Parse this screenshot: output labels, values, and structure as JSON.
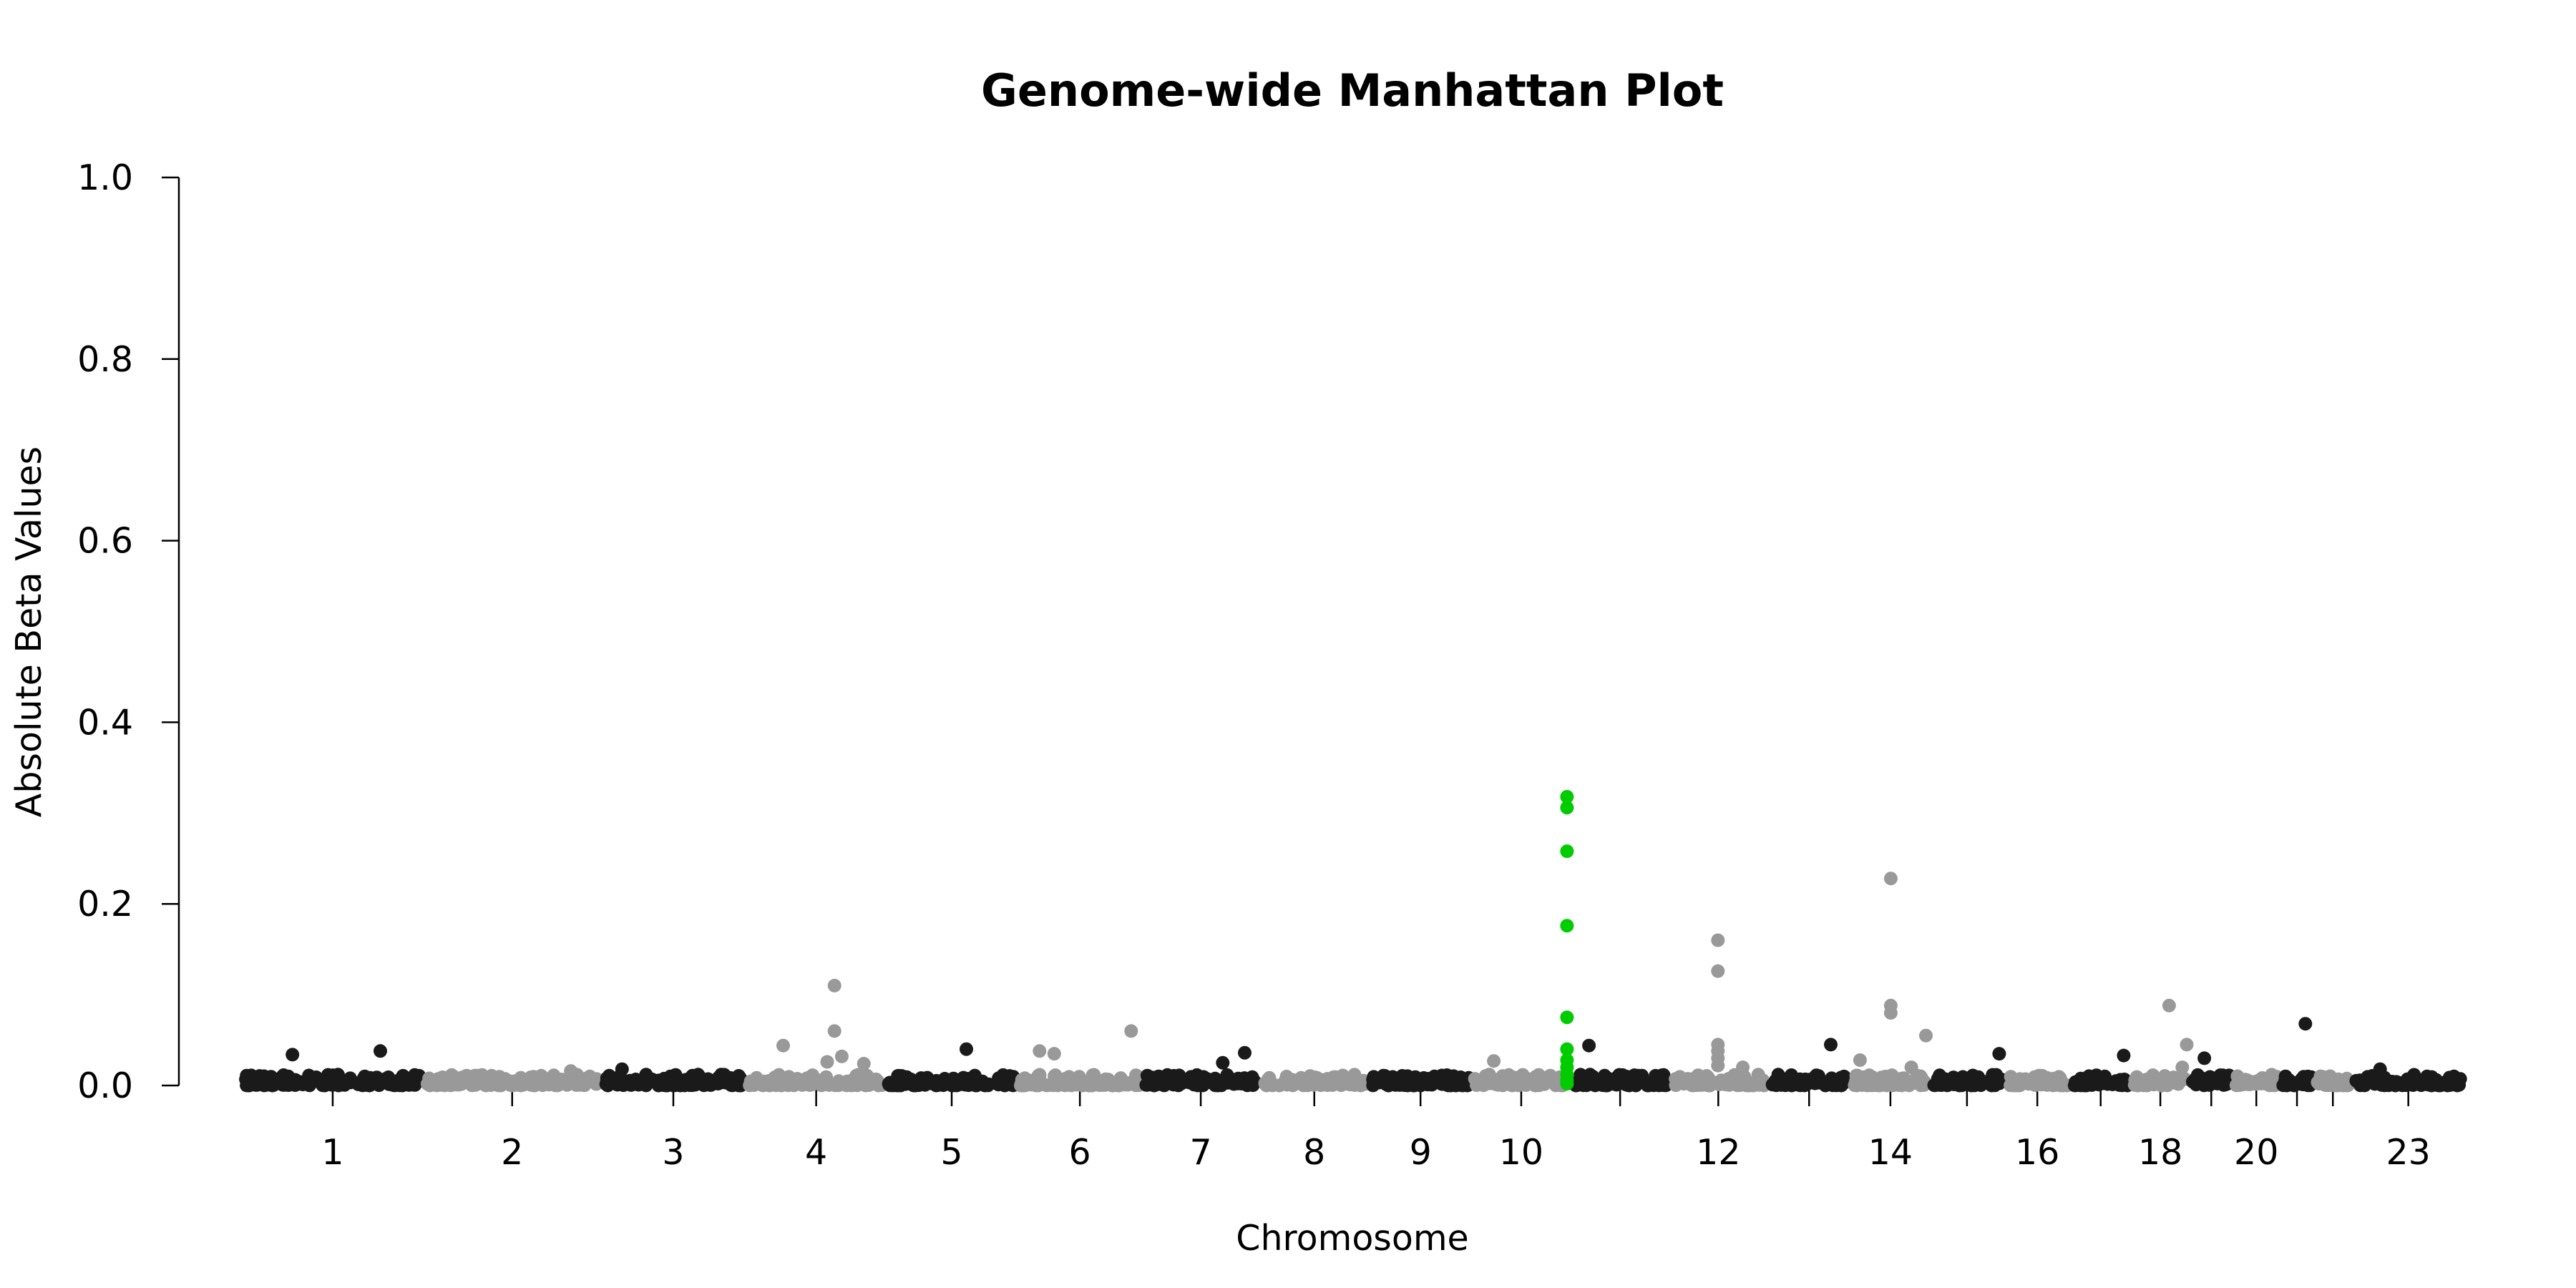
{
  "chart_data": {
    "type": "scatter",
    "title": "Genome-wide Manhattan Plot",
    "xlabel": "Chromosome",
    "ylabel": "Absolute Beta Values",
    "ylim": [
      0,
      1
    ],
    "y_ticks": [
      "0.0",
      "0.2",
      "0.4",
      "0.6",
      "0.8",
      "1.0"
    ],
    "y_tick_values": [
      0,
      0.2,
      0.4,
      0.6,
      0.8,
      1.0
    ],
    "x_tick_labels": [
      "1",
      "2",
      "3",
      "4",
      "5",
      "6",
      "7",
      "8",
      "9",
      "10",
      "12",
      "14",
      "16",
      "18",
      "20",
      "23"
    ],
    "grid": false,
    "legend": "none",
    "colors": {
      "odd": "#1a1a1a",
      "even": "#999999",
      "highlight": "#00cc00"
    },
    "x_scale": "genomic position (not printed on axis)",
    "chromosomes": [
      {
        "chrom": "1",
        "start": 0,
        "end": 250,
        "tick": true
      },
      {
        "chrom": "2",
        "start": 250,
        "end": 490,
        "tick": true
      },
      {
        "chrom": "3",
        "start": 490,
        "end": 690,
        "tick": true
      },
      {
        "chrom": "4",
        "start": 690,
        "end": 880,
        "tick": true
      },
      {
        "chrom": "5",
        "start": 880,
        "end": 1060,
        "tick": true
      },
      {
        "chrom": "6",
        "start": 1060,
        "end": 1230,
        "tick": true
      },
      {
        "chrom": "7",
        "start": 1230,
        "end": 1390,
        "tick": true
      },
      {
        "chrom": "8",
        "start": 1390,
        "end": 1540,
        "tick": true
      },
      {
        "chrom": "9",
        "start": 1540,
        "end": 1680,
        "tick": true
      },
      {
        "chrom": "10",
        "start": 1680,
        "end": 1815,
        "tick": true
      },
      {
        "chrom": "11",
        "start": 1815,
        "end": 1950,
        "tick": false
      },
      {
        "chrom": "12",
        "start": 1950,
        "end": 2083,
        "tick": true
      },
      {
        "chrom": "13",
        "start": 2083,
        "end": 2198,
        "tick": false
      },
      {
        "chrom": "14",
        "start": 2198,
        "end": 2305,
        "tick": true
      },
      {
        "chrom": "15",
        "start": 2305,
        "end": 2407,
        "tick": false
      },
      {
        "chrom": "16",
        "start": 2407,
        "end": 2497,
        "tick": true
      },
      {
        "chrom": "17",
        "start": 2497,
        "end": 2580,
        "tick": false
      },
      {
        "chrom": "18",
        "start": 2580,
        "end": 2660,
        "tick": true
      },
      {
        "chrom": "19",
        "start": 2660,
        "end": 2719,
        "tick": false
      },
      {
        "chrom": "20",
        "start": 2719,
        "end": 2783,
        "tick": true
      },
      {
        "chrom": "21",
        "start": 2783,
        "end": 2830,
        "tick": false
      },
      {
        "chrom": "22",
        "start": 2830,
        "end": 2881,
        "tick": false
      },
      {
        "chrom": "23",
        "start": 2881,
        "end": 3036,
        "tick": true
      }
    ],
    "series": [
      {
        "group": "highlight",
        "points": [
          [
            1810,
            0.318
          ],
          [
            1810,
            0.306
          ],
          [
            1810,
            0.258
          ],
          [
            1810,
            0.176
          ],
          [
            1810,
            0.075
          ],
          [
            1810,
            0.04
          ],
          [
            1810,
            0.028
          ],
          [
            1810,
            0.02
          ],
          [
            1810,
            0.012
          ],
          [
            1810,
            0.006
          ],
          [
            1810,
            0.002
          ]
        ]
      },
      {
        "group": "peaks",
        "points": [
          [
            70,
            0.034
          ],
          [
            190,
            0.038
          ],
          [
            450,
            0.016
          ],
          [
            520,
            0.018
          ],
          [
            740,
            0.044
          ],
          [
            810,
            0.11
          ],
          [
            810,
            0.06
          ],
          [
            820,
            0.032
          ],
          [
            800,
            0.026
          ],
          [
            850,
            0.024
          ],
          [
            990,
            0.04
          ],
          [
            1090,
            0.038
          ],
          [
            1110,
            0.035
          ],
          [
            1215,
            0.06
          ],
          [
            1340,
            0.025
          ],
          [
            1370,
            0.036
          ],
          [
            1710,
            0.027
          ],
          [
            1840,
            0.044
          ],
          [
            2016,
            0.16
          ],
          [
            2016,
            0.126
          ],
          [
            2016,
            0.045
          ],
          [
            2016,
            0.038
          ],
          [
            2016,
            0.03
          ],
          [
            2016,
            0.022
          ],
          [
            2050,
            0.02
          ],
          [
            2170,
            0.045
          ],
          [
            2210,
            0.028
          ],
          [
            2252,
            0.228
          ],
          [
            2252,
            0.088
          ],
          [
            2252,
            0.08
          ],
          [
            2280,
            0.02
          ],
          [
            2300,
            0.055
          ],
          [
            2400,
            0.035
          ],
          [
            2570,
            0.033
          ],
          [
            2632,
            0.088
          ],
          [
            2656,
            0.045
          ],
          [
            2680,
            0.03
          ],
          [
            2650,
            0.02
          ],
          [
            2818,
            0.068
          ],
          [
            2920,
            0.018
          ]
        ]
      }
    ]
  }
}
